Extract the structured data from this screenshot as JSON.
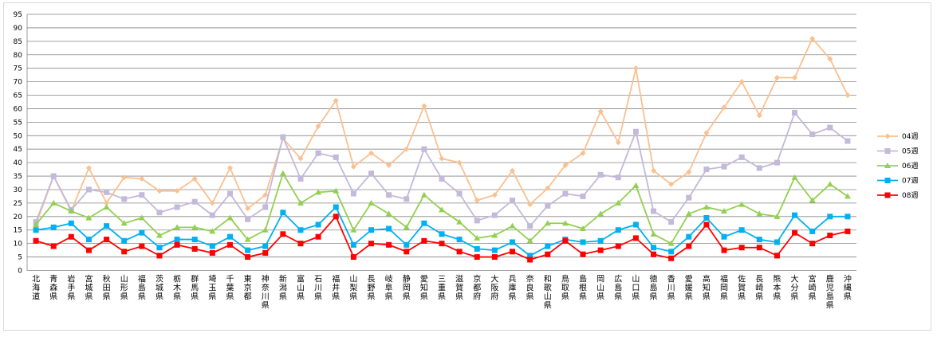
{
  "chart_data": {
    "type": "line",
    "title": "",
    "xlabel": "",
    "ylabel": "",
    "ylim": [
      0,
      95
    ],
    "ytick_step": 5,
    "grid": true,
    "legend_position": "right",
    "categories": [
      "北海道",
      "青森県",
      "岩手県",
      "宮城県",
      "秋田県",
      "山形県",
      "福島県",
      "茨城県",
      "栃木県",
      "群馬県",
      "埼玉県",
      "千葉県",
      "東京都",
      "神奈川県",
      "新潟県",
      "富山県",
      "石川県",
      "福井県",
      "山梨県",
      "長野県",
      "岐阜県",
      "静岡県",
      "愛知県",
      "三重県",
      "滋賀県",
      "京都府",
      "大阪府",
      "兵庫県",
      "奈良県",
      "和歌山県",
      "鳥取県",
      "島根県",
      "岡山県",
      "広島県",
      "山口県",
      "徳島県",
      "香川県",
      "愛媛県",
      "高知県",
      "福岡県",
      "佐賀県",
      "長崎県",
      "熊本県",
      "大分県",
      "宮崎県",
      "鹿児島県",
      "沖縄県"
    ],
    "series": [
      {
        "name": "04週",
        "color": "#fac090",
        "marker": "diamond",
        "values": [
          17,
          35,
          22,
          38,
          25,
          34.5,
          34,
          29.5,
          29.5,
          34,
          25,
          38,
          23,
          28,
          49,
          41.5,
          53.5,
          63,
          38.5,
          43.5,
          39,
          45,
          61,
          41.5,
          40,
          26,
          28,
          37,
          24.5,
          30.5,
          39,
          43.5,
          59,
          47.5,
          75,
          37,
          32,
          36.5,
          51,
          60.5,
          70,
          57.5,
          71.5,
          71.5,
          86,
          78.5,
          65
        ]
      },
      {
        "name": "05週",
        "color": "#c3b9d9",
        "marker": "square",
        "values": [
          18,
          35,
          22.5,
          30,
          29,
          26.5,
          28,
          21.5,
          23.5,
          25.5,
          20.5,
          28.5,
          19,
          23.5,
          49.5,
          34,
          43.5,
          42,
          28.5,
          36,
          28,
          26.5,
          45,
          34,
          28.5,
          18.5,
          20.5,
          26,
          16.5,
          24,
          28.5,
          27.5,
          35.5,
          34.5,
          51.5,
          22,
          18,
          27,
          37.5,
          38.5,
          42,
          38,
          40,
          58.5,
          50.5,
          53,
          48
        ]
      },
      {
        "name": "06週",
        "color": "#92d050",
        "marker": "triangle",
        "values": [
          17,
          25,
          22,
          19.5,
          23.5,
          17.5,
          19.5,
          13,
          16,
          16,
          14.5,
          19.5,
          11.5,
          15,
          36,
          25,
          29,
          29.5,
          15,
          25,
          21,
          16,
          28,
          22.5,
          18,
          12,
          13,
          16.5,
          11,
          17.5,
          17.5,
          15.5,
          21,
          25,
          31.5,
          13.5,
          10,
          21,
          23.5,
          22,
          24.5,
          21,
          20,
          34.5,
          26,
          32,
          27.5
        ]
      },
      {
        "name": "07週",
        "color": "#00b0f0",
        "marker": "square",
        "values": [
          15,
          16,
          17.5,
          11.5,
          16.5,
          11,
          14,
          8.5,
          11.5,
          11.5,
          9,
          12.5,
          7.5,
          9,
          21.5,
          15,
          17,
          23.5,
          9.5,
          15,
          15.5,
          9.5,
          17.5,
          13.5,
          11.5,
          8,
          7.5,
          10.5,
          5.5,
          9,
          11.5,
          10.5,
          11,
          15,
          17,
          8.5,
          7,
          12.5,
          19.5,
          12.5,
          15,
          11.5,
          10.5,
          20.5,
          14.5,
          20,
          20
        ]
      },
      {
        "name": "08週",
        "color": "#ff0000",
        "marker": "square",
        "values": [
          11,
          9,
          12.5,
          7.5,
          11.5,
          7,
          9,
          5.5,
          9.5,
          8,
          6.5,
          9.5,
          5,
          6.5,
          13.5,
          10,
          12.5,
          20,
          5,
          10,
          9.5,
          7,
          11,
          10,
          7,
          5,
          5,
          7,
          4,
          6,
          11,
          6,
          7.5,
          9,
          12,
          6,
          4.5,
          9,
          17,
          7.5,
          8.5,
          8.5,
          5.5,
          14,
          10,
          13,
          14.5
        ]
      }
    ]
  }
}
